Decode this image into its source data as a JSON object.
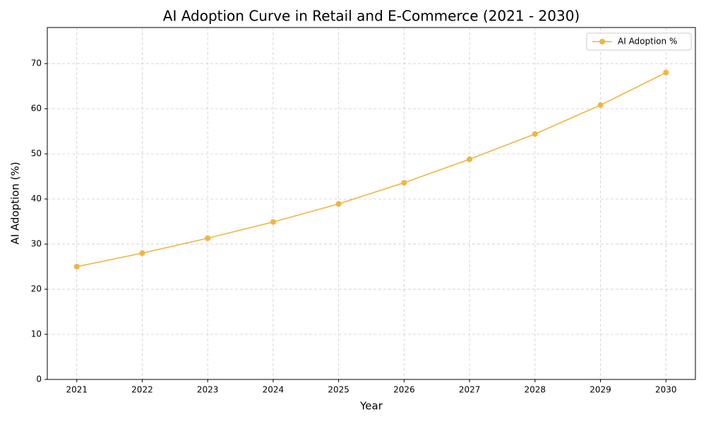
{
  "chart_data": {
    "type": "line",
    "title": "AI Adoption Curve in Retail and E-Commerce (2021 - 2030)",
    "x_label": "Year",
    "y_label": "AI Adoption (%)",
    "x": [
      2021,
      2022,
      2023,
      2024,
      2025,
      2026,
      2027,
      2028,
      2029,
      2030
    ],
    "series": [
      {
        "name": "AI Adoption %",
        "color": "#f0b443",
        "values": [
          25,
          28,
          31.3,
          34.9,
          38.9,
          43.6,
          48.8,
          54.4,
          60.8,
          68
        ]
      }
    ],
    "xlim": [
      2020.55,
      2030.45
    ],
    "xticks": [
      2021,
      2022,
      2023,
      2024,
      2025,
      2026,
      2027,
      2028,
      2029,
      2030
    ],
    "ylim": [
      0,
      78
    ],
    "yticks": [
      0,
      10,
      20,
      30,
      40,
      50,
      60,
      70
    ],
    "grid": true,
    "legend": "upper right"
  }
}
